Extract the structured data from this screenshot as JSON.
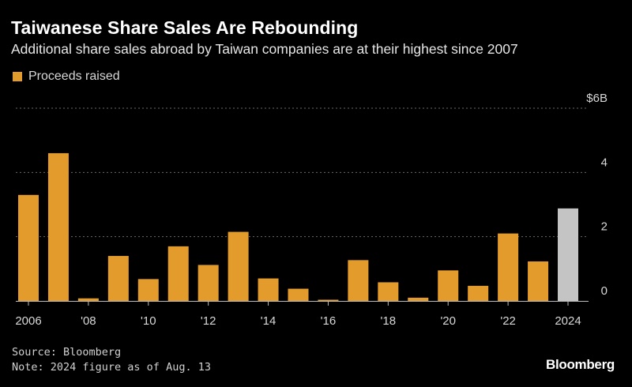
{
  "header": {
    "title": "Taiwanese Share Sales Are Rebounding",
    "subtitle": "Additional share sales abroad by Taiwan companies are at their highest since 2007"
  },
  "legend": {
    "label": "Proceeds raised"
  },
  "footer": {
    "source": "Source: Bloomberg",
    "note": "Note: 2024 figure as of Aug. 13"
  },
  "brand": {
    "logo": "Bloomberg"
  },
  "colors": {
    "bar": "#e39b2b",
    "highlight_bar": "#c4c4c4",
    "grid": "#6a6a6a",
    "background": "#000000"
  },
  "chart_data": {
    "type": "bar",
    "categories": [
      "2006",
      "2007",
      "2008",
      "2009",
      "2010",
      "2011",
      "2012",
      "2013",
      "2014",
      "2015",
      "2016",
      "2017",
      "2018",
      "2019",
      "2020",
      "2021",
      "2022",
      "2023",
      "2024"
    ],
    "series": [
      {
        "name": "Proceeds raised",
        "values": [
          3.3,
          4.6,
          0.08,
          1.4,
          0.68,
          1.7,
          1.12,
          2.15,
          0.7,
          0.38,
          0.03,
          1.27,
          0.58,
          0.1,
          0.95,
          0.47,
          2.1,
          1.23,
          2.88
        ]
      }
    ],
    "highlight_category": "2024",
    "x_tick_labels": [
      "2006",
      "'08",
      "'10",
      "'12",
      "'14",
      "'16",
      "'18",
      "'20",
      "'22",
      "2024"
    ],
    "x_tick_categories": [
      "2006",
      "2008",
      "2010",
      "2012",
      "2014",
      "2016",
      "2018",
      "2020",
      "2022",
      "2024"
    ],
    "y_ticks": [
      0,
      2,
      4,
      6
    ],
    "y_tick_labels": [
      "0",
      "2",
      "4",
      "$6B"
    ],
    "ylim": [
      0,
      6
    ],
    "grid": true,
    "y_axis_position": "right",
    "legend_position": "top-left"
  }
}
